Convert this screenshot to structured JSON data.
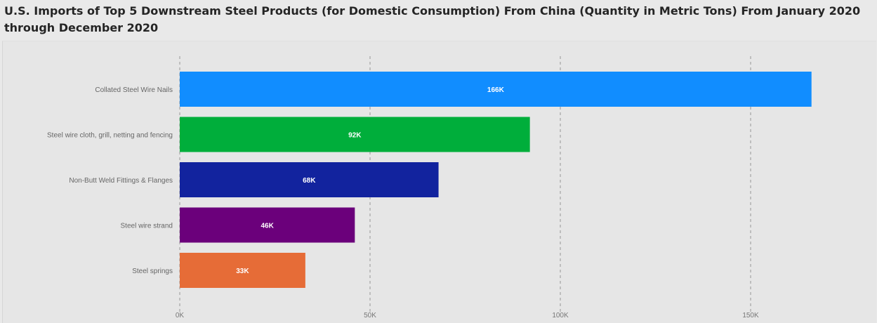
{
  "title": "U.S. Imports of Top 5 Downstream Steel Products (for Domestic Consumption) From China (Quantity in Metric Tons) From January 2020 through December 2020",
  "chart_data": {
    "type": "bar",
    "orientation": "horizontal",
    "categories": [
      "Collated Steel Wire Nails",
      "Steel wire cloth, grill, netting and fencing",
      "Non-Butt Weld Fittings & Flanges",
      "Steel wire strand",
      "Steel springs"
    ],
    "values": [
      166000,
      92000,
      68000,
      46000,
      33000
    ],
    "data_labels": [
      "166K",
      "92K",
      "68K",
      "46K",
      "33K"
    ],
    "colors": [
      "#118dff",
      "#00ae3b",
      "#12239e",
      "#6b007b",
      "#e66c37"
    ],
    "x_ticks": [
      0,
      50000,
      100000,
      150000
    ],
    "x_tick_labels": [
      "0K",
      "50K",
      "100K",
      "150K"
    ],
    "xlim": [
      0,
      180000
    ],
    "grid": "vertical dashed",
    "legend": "none"
  }
}
